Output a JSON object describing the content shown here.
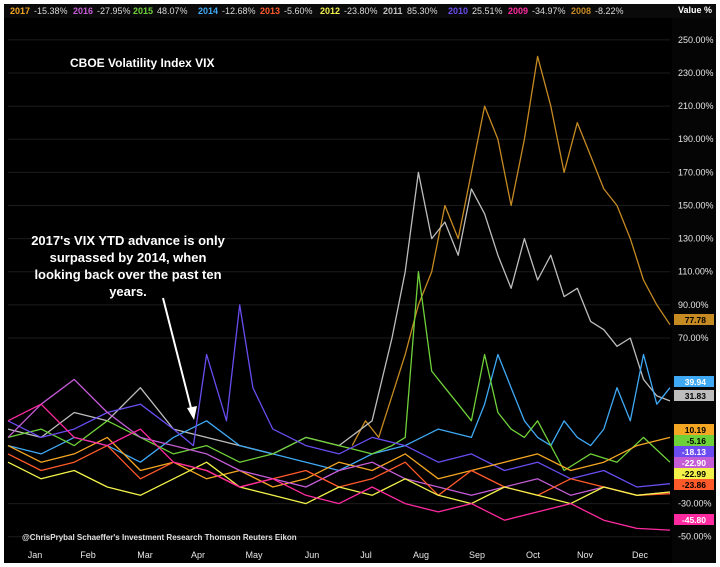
{
  "chart_data": {
    "type": "line",
    "title": "CBOE Volatility Index VIX",
    "value_axis_label": "Value %",
    "x_ticks": [
      "Jan",
      "Feb",
      "Mar",
      "Apr",
      "May",
      "Jun",
      "Jul",
      "Aug",
      "Sep",
      "Oct",
      "Nov",
      "Dec"
    ],
    "y_ticks": [
      {
        "v": 250,
        "t": "250.00%"
      },
      {
        "v": 230,
        "t": "230.00%"
      },
      {
        "v": 210,
        "t": "210.00%"
      },
      {
        "v": 190,
        "t": "190.00%"
      },
      {
        "v": 170,
        "t": "170.00%"
      },
      {
        "v": 150,
        "t": "150.00%"
      },
      {
        "v": 130,
        "t": "130.00%"
      },
      {
        "v": 110,
        "t": "110.00%"
      },
      {
        "v": 90,
        "t": "90.00%"
      },
      {
        "v": 70,
        "t": "70.00%"
      },
      {
        "v": -30,
        "t": "-30.00%"
      },
      {
        "v": -50,
        "t": "-50.00%"
      }
    ],
    "ylim": [
      -55,
      262
    ],
    "annotation": "2017's VIX YTD advance is only surpassed by 2014, when looking back over the past ten years.",
    "annotation_lines": [
      "2017's VIX YTD advance is only",
      "surpassed by 2014, when",
      "looking back over the past ten",
      "years."
    ],
    "credit": "@ChrisPrybal  Schaeffer's Investment Research Thomson Reuters Eikon",
    "legend": [
      {
        "name": "2017",
        "value": "-15.38%",
        "color": "#f5a623"
      },
      {
        "name": "2016",
        "value": "-27.95%",
        "color": "#c45cd6"
      },
      {
        "name": "2015",
        "value": "48.07%",
        "color": "#6fd13a"
      },
      {
        "name": "2014",
        "value": "-12.68%",
        "color": "#3fa9f5"
      },
      {
        "name": "2013",
        "value": "-5.60%",
        "color": "#ff5a2a"
      },
      {
        "name": "2012",
        "value": "-23.80%",
        "color": "#f2f24a"
      },
      {
        "name": "2011",
        "value": "85.30%",
        "color": "#bdbdbd"
      },
      {
        "name": "2010",
        "value": "25.51%",
        "color": "#6a4cf0"
      },
      {
        "name": "2009",
        "value": "-34.97%",
        "color": "#ff2aa0"
      },
      {
        "name": "2008",
        "value": "-8.22%",
        "color": "#c68a22"
      }
    ],
    "value_labels": [
      {
        "text": "77.78",
        "value": 77.78,
        "color": "#c68a22",
        "dark": true
      },
      {
        "text": "39.94",
        "value": 39.94,
        "color": "#3fa9f5",
        "dark": false
      },
      {
        "text": "31.83",
        "value": 31.83,
        "color": "#bdbdbd",
        "dark": true
      },
      {
        "text": "10.19",
        "value": 10.19,
        "color": "#f5a623",
        "dark": true
      },
      {
        "text": "-5.16",
        "value": -5.16,
        "color": "#6fd13a",
        "dark": true
      },
      {
        "text": "-18.13",
        "value": -18.13,
        "color": "#6a4cf0",
        "dark": false
      },
      {
        "text": "-22.90",
        "value": -22.9,
        "color": "#c45cd6",
        "dark": false
      },
      {
        "text": "-22.99",
        "value": -22.99,
        "color": "#f2f24a",
        "dark": true
      },
      {
        "text": "-23.86",
        "value": -23.86,
        "color": "#ff5a2a",
        "dark": true
      },
      {
        "text": "-45.80",
        "value": -45.8,
        "color": "#ff2aa0",
        "dark": false
      }
    ],
    "series": [
      {
        "name": "2008",
        "color": "#c68a22",
        "x": [
          0.52,
          0.54,
          0.56,
          0.58,
          0.6,
          0.62,
          0.64,
          0.66,
          0.68,
          0.7,
          0.72,
          0.74,
          0.76,
          0.78,
          0.8,
          0.82,
          0.84,
          0.86,
          0.88,
          0.9,
          0.92,
          0.94,
          0.96,
          0.98,
          1.0
        ],
        "y": [
          5,
          20,
          10,
          35,
          60,
          90,
          110,
          150,
          130,
          170,
          210,
          190,
          150,
          190,
          240,
          210,
          170,
          200,
          180,
          160,
          150,
          130,
          105,
          90,
          78
        ]
      },
      {
        "name": "2011",
        "color": "#bdbdbd",
        "x": [
          0,
          0.05,
          0.1,
          0.15,
          0.2,
          0.25,
          0.3,
          0.35,
          0.4,
          0.45,
          0.5,
          0.55,
          0.58,
          0.6,
          0.62,
          0.64,
          0.66,
          0.68,
          0.7,
          0.72,
          0.74,
          0.76,
          0.78,
          0.8,
          0.82,
          0.84,
          0.86,
          0.88,
          0.9,
          0.92,
          0.94,
          0.96,
          0.98,
          1.0
        ],
        "y": [
          15,
          10,
          25,
          20,
          40,
          15,
          10,
          5,
          0,
          10,
          5,
          20,
          70,
          110,
          170,
          130,
          140,
          120,
          160,
          145,
          120,
          100,
          130,
          105,
          120,
          95,
          100,
          80,
          75,
          65,
          70,
          45,
          35,
          32
        ]
      },
      {
        "name": "2014",
        "color": "#3fa9f5",
        "x": [
          0,
          0.05,
          0.1,
          0.15,
          0.2,
          0.25,
          0.3,
          0.35,
          0.4,
          0.45,
          0.5,
          0.55,
          0.6,
          0.65,
          0.7,
          0.72,
          0.74,
          0.76,
          0.78,
          0.8,
          0.82,
          0.84,
          0.86,
          0.88,
          0.9,
          0.92,
          0.94,
          0.96,
          0.98,
          1.0
        ],
        "y": [
          5,
          0,
          10,
          5,
          -5,
          10,
          20,
          5,
          0,
          -5,
          -10,
          0,
          5,
          15,
          10,
          30,
          60,
          40,
          20,
          10,
          5,
          20,
          10,
          5,
          15,
          40,
          20,
          60,
          30,
          40
        ]
      },
      {
        "name": "2015",
        "color": "#6fd13a",
        "x": [
          0,
          0.05,
          0.1,
          0.15,
          0.2,
          0.25,
          0.3,
          0.35,
          0.4,
          0.45,
          0.5,
          0.55,
          0.58,
          0.6,
          0.62,
          0.64,
          0.66,
          0.68,
          0.7,
          0.72,
          0.74,
          0.76,
          0.78,
          0.8,
          0.84,
          0.88,
          0.92,
          0.96,
          1.0
        ],
        "y": [
          10,
          15,
          5,
          20,
          10,
          0,
          5,
          -5,
          0,
          10,
          5,
          0,
          5,
          10,
          110,
          50,
          40,
          30,
          20,
          60,
          25,
          15,
          10,
          20,
          -10,
          0,
          -5,
          10,
          -5
        ]
      },
      {
        "name": "2010",
        "color": "#6a4cf0",
        "x": [
          0,
          0.05,
          0.1,
          0.15,
          0.2,
          0.25,
          0.28,
          0.3,
          0.33,
          0.35,
          0.37,
          0.4,
          0.45,
          0.5,
          0.55,
          0.6,
          0.65,
          0.7,
          0.75,
          0.8,
          0.85,
          0.9,
          0.95,
          1.0
        ],
        "y": [
          20,
          10,
          15,
          25,
          30,
          15,
          5,
          60,
          20,
          90,
          40,
          15,
          5,
          0,
          10,
          5,
          -5,
          0,
          -10,
          -5,
          -15,
          -10,
          -20,
          -18
        ]
      },
      {
        "name": "2017",
        "color": "#f5a623",
        "x": [
          0,
          0.05,
          0.1,
          0.15,
          0.2,
          0.25,
          0.3,
          0.35,
          0.4,
          0.45,
          0.5,
          0.55,
          0.6,
          0.65,
          0.7,
          0.75,
          0.8,
          0.85,
          0.9,
          0.95,
          1.0
        ],
        "y": [
          5,
          -5,
          0,
          10,
          -10,
          -5,
          -15,
          -10,
          -20,
          -15,
          -5,
          -10,
          0,
          -15,
          -10,
          -5,
          0,
          -10,
          -5,
          5,
          10
        ]
      },
      {
        "name": "2016",
        "color": "#c45cd6",
        "x": [
          0,
          0.05,
          0.1,
          0.15,
          0.2,
          0.25,
          0.3,
          0.35,
          0.4,
          0.45,
          0.5,
          0.55,
          0.6,
          0.65,
          0.7,
          0.75,
          0.8,
          0.85,
          0.9,
          0.95,
          1.0
        ],
        "y": [
          10,
          30,
          45,
          25,
          10,
          5,
          0,
          -10,
          -15,
          -20,
          -10,
          -5,
          -15,
          -20,
          -25,
          -20,
          -15,
          -25,
          -20,
          -25,
          -23
        ]
      },
      {
        "name": "2013",
        "color": "#ff5a2a",
        "x": [
          0,
          0.05,
          0.1,
          0.15,
          0.2,
          0.25,
          0.3,
          0.35,
          0.4,
          0.45,
          0.5,
          0.55,
          0.6,
          0.65,
          0.7,
          0.75,
          0.8,
          0.85,
          0.9,
          0.95,
          1.0
        ],
        "y": [
          0,
          -10,
          -5,
          5,
          -15,
          -5,
          -10,
          -20,
          -15,
          -10,
          -20,
          -15,
          -5,
          -25,
          -10,
          -20,
          -25,
          -15,
          -20,
          -25,
          -24
        ]
      },
      {
        "name": "2012",
        "color": "#f2f24a",
        "x": [
          0,
          0.05,
          0.1,
          0.15,
          0.2,
          0.25,
          0.3,
          0.35,
          0.4,
          0.45,
          0.5,
          0.55,
          0.6,
          0.65,
          0.7,
          0.75,
          0.8,
          0.85,
          0.9,
          0.95,
          1.0
        ],
        "y": [
          -5,
          -15,
          -10,
          -20,
          -25,
          -15,
          -5,
          -20,
          -25,
          -30,
          -20,
          -25,
          -15,
          -25,
          -30,
          -20,
          -25,
          -30,
          -20,
          -25,
          -23
        ]
      },
      {
        "name": "2009",
        "color": "#ff2aa0",
        "x": [
          0,
          0.05,
          0.1,
          0.15,
          0.2,
          0.25,
          0.3,
          0.35,
          0.4,
          0.45,
          0.5,
          0.55,
          0.6,
          0.65,
          0.7,
          0.75,
          0.8,
          0.85,
          0.9,
          0.95,
          1.0
        ],
        "y": [
          20,
          30,
          10,
          5,
          15,
          -5,
          -10,
          -20,
          -15,
          -25,
          -30,
          -20,
          -30,
          -35,
          -30,
          -40,
          -35,
          -30,
          -40,
          -45,
          -46
        ]
      }
    ]
  }
}
